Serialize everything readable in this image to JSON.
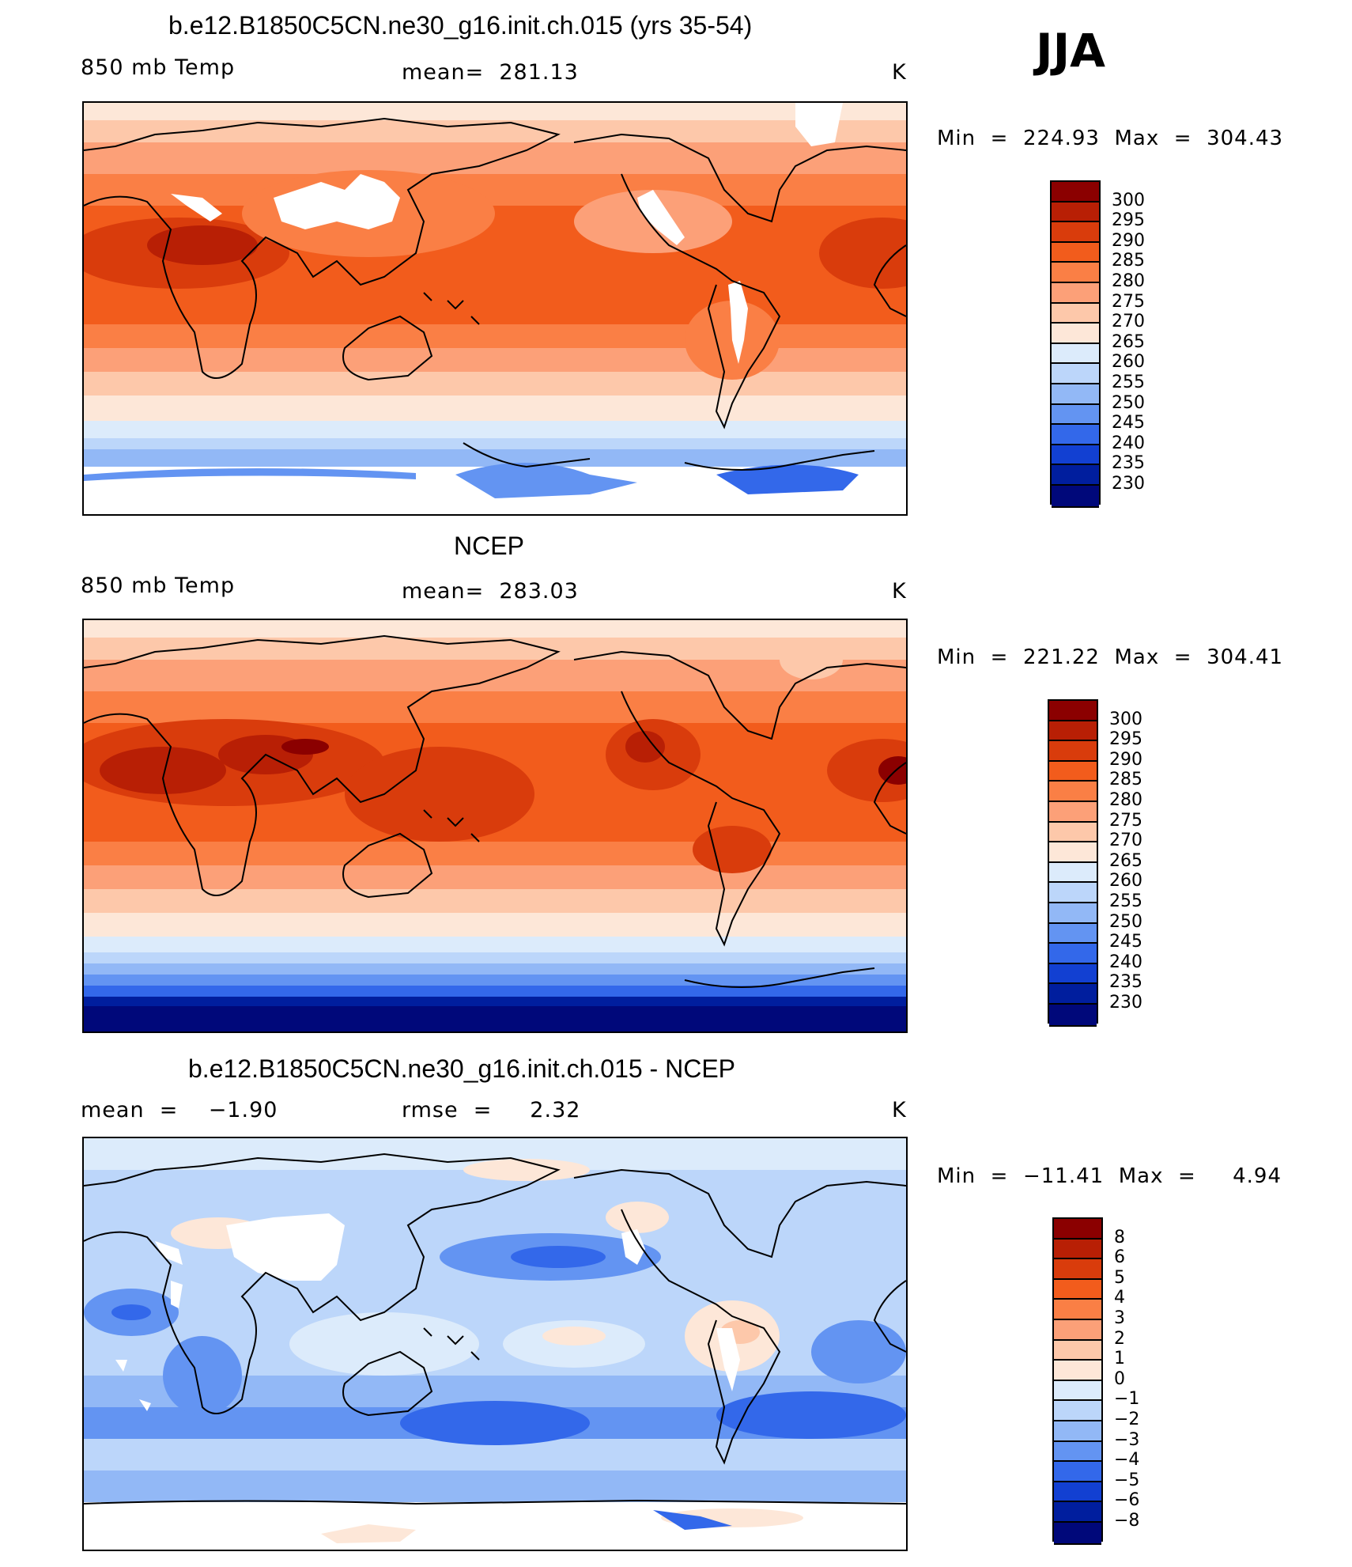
{
  "season": "JJA",
  "panels": [
    {
      "title": "b.e12.B1850C5CN.ne30_g16.init.ch.015 (yrs 35-54)",
      "left_label": "850 mb Temp",
      "center_label": "mean=  281.13",
      "units": "K",
      "minmax": "Min  =  224.93  Max  =  304.43",
      "map": "model-temperature-map",
      "palette": "warm",
      "levels": [
        "300",
        "295",
        "290",
        "285",
        "280",
        "275",
        "270",
        "265",
        "260",
        "255",
        "250",
        "245",
        "240",
        "235",
        "230"
      ],
      "colors": [
        "#8b0000",
        "#b81f05",
        "#d93c0c",
        "#f25c1c",
        "#fa7f45",
        "#fca078",
        "#fdc8aa",
        "#fde7d8",
        "#dcebfb",
        "#bcd6fa",
        "#92b8f6",
        "#6394f2",
        "#3368ea",
        "#1240d2",
        "#001e9e",
        "#00087a"
      ]
    },
    {
      "title": "NCEP",
      "left_label": "850 mb Temp",
      "center_label": "mean=  283.03",
      "units": "K",
      "minmax": "Min  =  221.22  Max  =  304.41",
      "map": "ncep-temperature-map",
      "palette": "warm",
      "levels": [
        "300",
        "295",
        "290",
        "285",
        "280",
        "275",
        "270",
        "265",
        "260",
        "255",
        "250",
        "245",
        "240",
        "235",
        "230"
      ],
      "colors": [
        "#8b0000",
        "#b81f05",
        "#d93c0c",
        "#f25c1c",
        "#fa7f45",
        "#fca078",
        "#fdc8aa",
        "#fde7d8",
        "#dcebfb",
        "#bcd6fa",
        "#92b8f6",
        "#6394f2",
        "#3368ea",
        "#1240d2",
        "#001e9e",
        "#00087a"
      ]
    },
    {
      "title": "b.e12.B1850C5CN.ne30_g16.init.ch.015 - NCEP",
      "left_label": "mean  =    −1.90",
      "center_label": "rmse  =     2.32",
      "units": "K",
      "minmax": "Min  =  −11.41  Max  =     4.94",
      "map": "difference-map",
      "palette": "diff",
      "levels": [
        "8",
        "6",
        "5",
        "4",
        "3",
        "2",
        "1",
        "0",
        "−1",
        "−2",
        "−3",
        "−4",
        "−5",
        "−6",
        "−8"
      ],
      "colors": [
        "#8b0000",
        "#b81f05",
        "#d93c0c",
        "#f25c1c",
        "#fa7f45",
        "#fca078",
        "#fdc8aa",
        "#fde7d8",
        "#dcebfb",
        "#bcd6fa",
        "#92b8f6",
        "#6394f2",
        "#3368ea",
        "#1240d2",
        "#001e9e",
        "#00087a"
      ]
    }
  ]
}
